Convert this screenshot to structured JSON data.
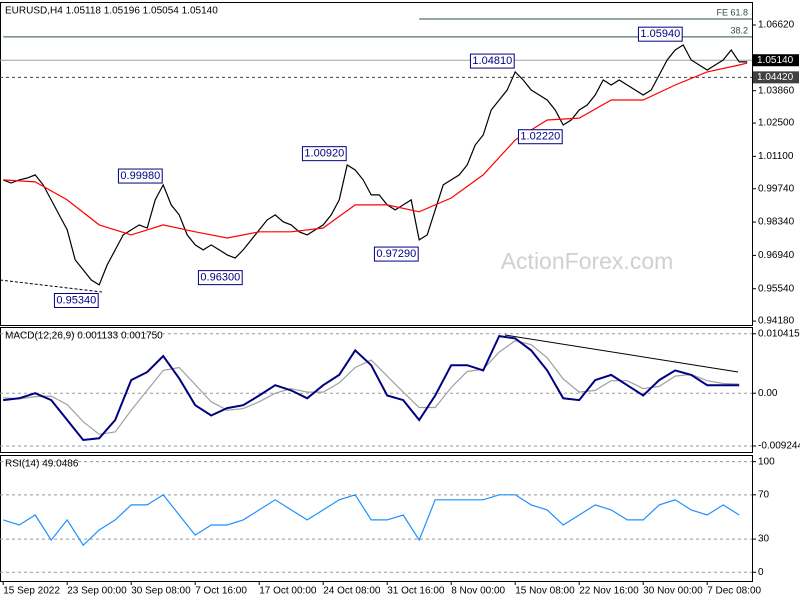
{
  "chart_data": [
    {
      "type": "line",
      "title": "EURUSD,H4  1.05118 1.05196 1.05054 1.05140",
      "watermark": "ActionForex.com",
      "categories": [
        "15 Sep 2022",
        null,
        null,
        null,
        null,
        null,
        null,
        null,
        "23 Sep 00:00",
        null,
        null,
        null,
        null,
        null,
        null,
        null,
        "30 Sep 08:00",
        null,
        null,
        null,
        null,
        null,
        null,
        null,
        "7 Oct 16:00",
        null,
        null,
        null,
        null,
        null,
        null,
        null,
        "17 Oct 00:00",
        null,
        null,
        null,
        null,
        null,
        null,
        null,
        "24 Oct 08:00",
        null,
        null,
        null,
        null,
        null,
        null,
        null,
        "31 Oct 16:00",
        null,
        null,
        null,
        null,
        null,
        null,
        null,
        "8 Nov 00:00",
        null,
        null,
        null,
        null,
        null,
        null,
        null,
        "15 Nov 08:00",
        null,
        null,
        null,
        null,
        null,
        null,
        null,
        "22 Nov 16:00",
        null,
        null,
        null,
        null,
        null,
        null,
        null,
        "30 Nov 00:00",
        null,
        null,
        null,
        null,
        null,
        null,
        null,
        "7 Dec 08:00",
        null,
        null,
        null,
        null,
        null
      ],
      "xlim": [
        -0.4,
        93.6
      ],
      "series": [
        {
          "color": "#000000",
          "values": [
            1.0011,
            0.9998,
            1.0011,
            1.0019,
            1.0032,
            0.999,
            0.9927,
            0.9864,
            0.9801,
            0.9675,
            0.9633,
            0.9591,
            0.957,
            0.9654,
            0.9717,
            0.978,
            0.9801,
            0.9822,
            0.9809,
            0.9927,
            0.999,
            0.9906,
            0.9864,
            0.978,
            0.9738,
            0.9717,
            0.9738,
            0.9717,
            0.9696,
            0.9683,
            0.9717,
            0.9759,
            0.9801,
            0.9843,
            0.9864,
            0.9835,
            0.9822,
            0.9793,
            0.978,
            0.9801,
            0.9822,
            0.9864,
            0.9927,
            1.0074,
            1.0053,
            1.0011,
            0.9948,
            0.9948,
            0.9906,
            0.9885,
            0.9906,
            0.9927,
            0.9759,
            0.978,
            0.9885,
            0.999,
            1.0011,
            1.0032,
            1.0074,
            1.0158,
            1.02,
            1.0305,
            1.0347,
            1.0389,
            1.0465,
            1.0431,
            1.0389,
            1.0368,
            1.0347,
            1.0305,
            1.0242,
            1.0263,
            1.0305,
            1.0326,
            1.0368,
            1.0431,
            1.041,
            1.0431,
            1.041,
            1.0389,
            1.0368,
            1.0389,
            1.0452,
            1.0515,
            1.0557,
            1.0578,
            1.0515,
            1.0494,
            1.0473,
            1.0494,
            1.0515,
            1.0557,
            1.0507,
            1.0507
          ]
        },
        {
          "color": "#ff0000",
          "x": [
            0,
            4,
            8,
            12,
            16,
            20,
            24,
            28,
            32,
            36,
            40,
            44,
            48,
            52,
            56,
            60,
            64,
            68,
            72,
            76,
            80,
            84,
            88,
            92,
            93
          ],
          "values": [
            1.0011,
            1.0003,
            0.9927,
            0.9822,
            0.978,
            0.9822,
            0.9793,
            0.9767,
            0.9793,
            0.9793,
            0.9809,
            0.9906,
            0.9906,
            0.9877,
            0.9935,
            1.0032,
            1.0179,
            1.0263,
            1.0271,
            1.0347,
            1.0347,
            1.041,
            1.0465,
            1.0494,
            1.0502
          ]
        }
      ],
      "ylim": [
        0.941,
        1.0746
      ],
      "yticks": [
        {
          "value": 1.0662,
          "label": "1.06620"
        },
        {
          "value": 1.0386,
          "label": "1.03860"
        },
        {
          "value": 1.025,
          "label": "1.02500"
        },
        {
          "value": 1.011,
          "label": "1.01100"
        },
        {
          "value": 0.9974,
          "label": "0.99740"
        },
        {
          "value": 0.9834,
          "label": "0.98340"
        },
        {
          "value": 0.9694,
          "label": "0.96940"
        },
        {
          "value": 0.9554,
          "label": "0.95540"
        },
        {
          "value": 0.9418,
          "label": "0.94180"
        }
      ],
      "annotations": [
        {
          "label": "1.05940",
          "value": 1.0594,
          "x": 85
        },
        {
          "label": "1.04810",
          "value": 1.0481,
          "x": 64
        },
        {
          "label": "1.02220",
          "value": 1.0222,
          "x": 70
        },
        {
          "label": "1.00920",
          "value": 1.0092,
          "x": 43
        },
        {
          "label": "0.99980",
          "value": 0.9998,
          "x": 20
        },
        {
          "label": "0.97290",
          "value": 0.9729,
          "x": 52
        },
        {
          "label": "0.96300",
          "value": 0.963,
          "x": 30
        },
        {
          "label": "0.95340",
          "value": 0.9534,
          "x": 12
        }
      ],
      "levels": [
        {
          "label": "FE 61.8",
          "value": 1.0687,
          "x": 52,
          "color": "#2f4f4f"
        },
        {
          "label": "38.2",
          "value": 1.0612,
          "x": 0,
          "color": "#2f4f4f"
        }
      ],
      "markers": [
        {
          "label": "1.05140",
          "value": 1.0514,
          "color": "#000000",
          "line": "#a0a0a0",
          "dashed": false
        },
        {
          "label": "1.04420",
          "value": 1.0442,
          "color": "#404040",
          "line": "#404040",
          "dashed": true
        }
      ]
    },
    {
      "type": "line",
      "title": "MACD(12,26,9) 0.001133 0.001750",
      "x": [
        0,
        2,
        4,
        6,
        8,
        10,
        12,
        14,
        16,
        18,
        20,
        22,
        24,
        26,
        28,
        30,
        32,
        34,
        36,
        38,
        40,
        42,
        44,
        46,
        48,
        50,
        52,
        54,
        56,
        58,
        60,
        62,
        64,
        66,
        68,
        70,
        72,
        74,
        76,
        78,
        80,
        82,
        84,
        86,
        88,
        90,
        92
      ],
      "series": [
        {
          "color": "#a0a0a0",
          "values": [
            -0.0008,
            -0.001,
            -0.0006,
            -0.0005,
            -0.002,
            -0.005,
            -0.0072,
            -0.0068,
            -0.003,
            0.0005,
            0.004,
            0.0045,
            0.0015,
            -0.0015,
            -0.003,
            -0.0027,
            -0.0015,
            0,
            0.0008,
            0.0002,
            0.0002,
            0.0018,
            0.0045,
            0.0058,
            0.003,
            0.0002,
            -0.0025,
            -0.0025,
            0.001,
            0.0038,
            0.0042,
            0.0072,
            0.0092,
            0.0085,
            0.0062,
            0.0025,
            0.0002,
            0.0005,
            0.0022,
            0.0022,
            0.0008,
            0.0012,
            0.003,
            0.0033,
            0.0022,
            0.0017,
            0.0016
          ]
        },
        {
          "color": "#000080",
          "values": [
            -0.0012,
            -0.0009,
            0,
            -0.0012,
            -0.0047,
            -0.0082,
            -0.0079,
            -0.0047,
            0.0023,
            0.0037,
            0.0065,
            0.0026,
            -0.0021,
            -0.0039,
            -0.0026,
            -0.0021,
            -0.0004,
            0.0014,
            0.0005,
            -0.0009,
            0.0014,
            0.0032,
            0.0075,
            0.0049,
            -0.0004,
            -0.0012,
            -0.0047,
            -0.0004,
            0.0049,
            0.0049,
            0.004,
            0.01,
            0.0096,
            0.0075,
            0.004,
            -0.0009,
            -0.0012,
            0.0023,
            0.0032,
            0.0014,
            -0.0004,
            0.0023,
            0.004,
            0.0032,
            0.0014,
            0.0014,
            0.0014
          ]
        }
      ],
      "ylim": [
        -0.0103,
        0.0116
      ],
      "yticks": [
        0.010415,
        {
          "value": 0,
          "label": "0.00"
        },
        -0.009244
      ],
      "grid": true
    },
    {
      "type": "line",
      "title": "RSI(14) 49.0486",
      "x": [
        0,
        2,
        4,
        6,
        8,
        10,
        12,
        14,
        16,
        18,
        20,
        22,
        24,
        26,
        28,
        30,
        32,
        34,
        36,
        38,
        40,
        42,
        44,
        46,
        48,
        50,
        52,
        54,
        56,
        58,
        60,
        62,
        64,
        66,
        68,
        70,
        72,
        74,
        76,
        78,
        80,
        82,
        84,
        86,
        88,
        90,
        92
      ],
      "series": [
        {
          "color": "#1e90ff",
          "values": [
            47.3,
            42.7,
            51.8,
            29.1,
            47.3,
            24.5,
            38.2,
            47.3,
            60.9,
            60.9,
            70,
            51.8,
            33.6,
            42.7,
            42.7,
            47.3,
            56.4,
            65.5,
            56.4,
            47.3,
            56.4,
            65.5,
            70,
            47.3,
            47.3,
            51.8,
            29.1,
            65.5,
            65.5,
            65.5,
            65.5,
            70,
            70,
            60.9,
            56.4,
            42.7,
            51.8,
            60.9,
            56.4,
            47.3,
            47.3,
            60.9,
            65.5,
            56.4,
            51.8,
            60.9,
            51.8
          ]
        }
      ],
      "ylim": [
        -7,
        106
      ],
      "yticks": [
        100,
        70,
        30,
        0
      ],
      "grid": true
    }
  ]
}
